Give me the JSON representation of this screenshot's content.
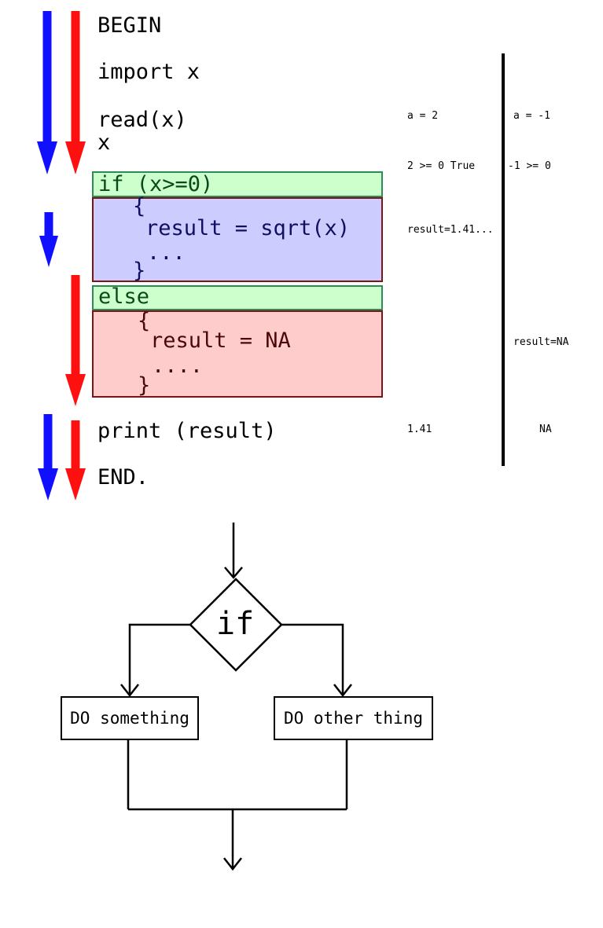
{
  "colors": {
    "path_true": "#1010ff",
    "path_false": "#ff1010",
    "condition_fill": "#ccffcc",
    "if_branch_fill": "#ccccff",
    "else_branch_fill": "#ffcccc"
  },
  "program": {
    "begin": "BEGIN",
    "import": "import x",
    "read": "read(x)",
    "var": "x",
    "if_cond": "if (x>=0)",
    "if_open": "{",
    "if_body": "result = sqrt(x)",
    "if_dots": "...",
    "if_close": "}",
    "else_label": "else",
    "else_open": "{",
    "else_body": "result = NA",
    "else_dots": "....",
    "else_close": "}",
    "print": "print (result)",
    "end": "END."
  },
  "trace_positive": {
    "input": "a = 2",
    "test": "2 >= 0 True",
    "result": "result=1.41...",
    "output": "1.41"
  },
  "trace_negative": {
    "input": "a = -1",
    "test": "-1 >= 0",
    "result": "result=NA",
    "output": "NA"
  },
  "flowchart": {
    "decision": "if",
    "left_action": "DO something",
    "right_action": "DO other thing"
  }
}
